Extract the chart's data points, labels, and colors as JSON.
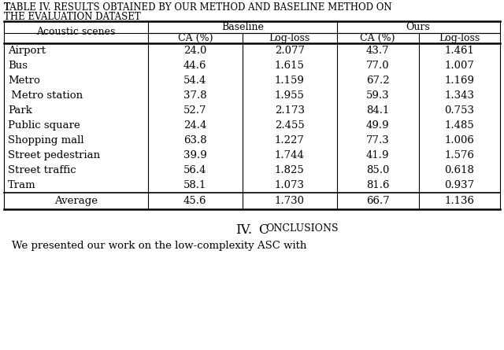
{
  "title_line1": "Table IV. Results Obtained by Our Method and Baseline Method on",
  "title_line2": "The Evaluation Dataset",
  "col_header_1": "Acoustic scenes",
  "col_header_2": "Baseline",
  "col_header_3": "Ours",
  "sub_headers": [
    "CA (%)",
    "Log-loss",
    "CA (%)",
    "Log-loss"
  ],
  "rows": [
    [
      "Airport",
      "24.0",
      "2.077",
      "43.7",
      "1.461"
    ],
    [
      "Bus",
      "44.6",
      "1.615",
      "77.0",
      "1.007"
    ],
    [
      "Metro",
      "54.4",
      "1.159",
      "67.2",
      "1.169"
    ],
    [
      " Metro station",
      "37.8",
      "1.955",
      "59.3",
      "1.343"
    ],
    [
      "Park",
      "52.7",
      "2.173",
      "84.1",
      "0.753"
    ],
    [
      "Public square",
      "24.4",
      "2.455",
      "49.9",
      "1.485"
    ],
    [
      "Shopping mall",
      "63.8",
      "1.227",
      "77.3",
      "1.006"
    ],
    [
      "Street pedestrian",
      "39.9",
      "1.744",
      "41.9",
      "1.576"
    ],
    [
      "Street traffic",
      "56.4",
      "1.825",
      "85.0",
      "0.618"
    ],
    [
      "Tram",
      "58.1",
      "1.073",
      "81.6",
      "0.937"
    ]
  ],
  "avg_row": [
    "Average",
    "45.6",
    "1.730",
    "66.7",
    "1.136"
  ],
  "bg_color": "#ffffff",
  "text_color": "#000000",
  "font_size": 9.0,
  "title_font_size": 9.0,
  "footer_font_size": 12.0,
  "body_font_size": 9.5
}
